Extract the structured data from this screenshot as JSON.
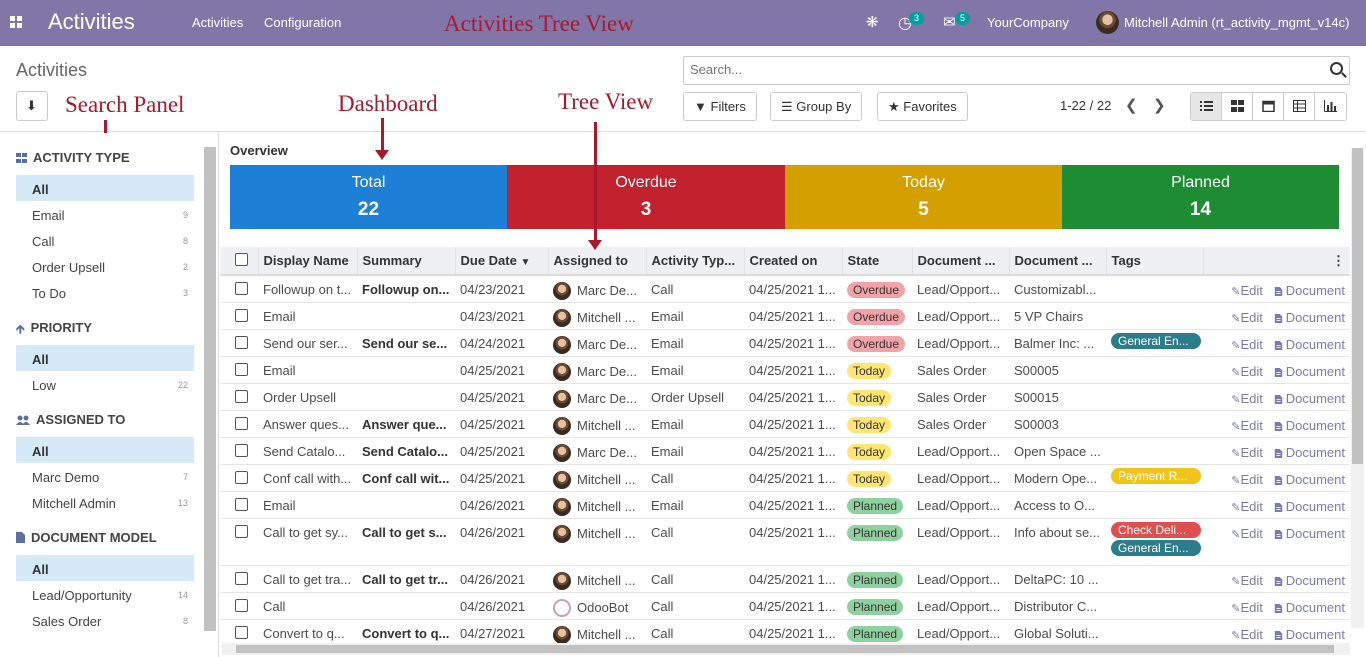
{
  "topbar": {
    "app_title": "Activities",
    "menu": [
      "Activities",
      "Configuration"
    ],
    "annotation": "Activities Tree View",
    "activity_count": "3",
    "message_count": "5",
    "company": "YourCompany",
    "user": "Mitchell Admin (rt_activity_mgmt_v14c)",
    "icons": [
      "apps-icon",
      "bug-icon",
      "clock-icon",
      "chat-icon"
    ]
  },
  "control_panel": {
    "title": "Activities",
    "search_placeholder": "Search...",
    "filters_label": "Filters",
    "groupby_label": "Group By",
    "favorites_label": "Favorites",
    "pager": "1-22 / 22",
    "annotations": {
      "search_panel": "Search Panel",
      "dashboard": "Dashboard",
      "tree_view": "Tree View"
    }
  },
  "sidebar": {
    "sections": [
      {
        "title": "ACTIVITY TYPE",
        "items": [
          {
            "label": "All",
            "count": ""
          },
          {
            "label": "Email",
            "count": "9"
          },
          {
            "label": "Call",
            "count": "8"
          },
          {
            "label": "Order Upsell",
            "count": "2"
          },
          {
            "label": "To Do",
            "count": "3"
          }
        ]
      },
      {
        "title": "PRIORITY",
        "items": [
          {
            "label": "All",
            "count": ""
          },
          {
            "label": "Low",
            "count": "22"
          }
        ]
      },
      {
        "title": "ASSIGNED TO",
        "items": [
          {
            "label": "All",
            "count": ""
          },
          {
            "label": "Marc Demo",
            "count": "7"
          },
          {
            "label": "Mitchell Admin",
            "count": "13"
          }
        ]
      },
      {
        "title": "DOCUMENT MODEL",
        "items": [
          {
            "label": "All",
            "count": ""
          },
          {
            "label": "Lead/Opportunity",
            "count": "14"
          },
          {
            "label": "Sales Order",
            "count": "8"
          }
        ]
      }
    ]
  },
  "overview": {
    "label": "Overview",
    "tiles": [
      {
        "label": "Total",
        "value": "22",
        "color": "#1e7fd6"
      },
      {
        "label": "Overdue",
        "value": "3",
        "color": "#c2222e"
      },
      {
        "label": "Today",
        "value": "5",
        "color": "#d4a000"
      },
      {
        "label": "Planned",
        "value": "14",
        "color": "#1e8c33"
      }
    ]
  },
  "table": {
    "columns": [
      "Display Name",
      "Summary",
      "Due Date",
      "Assigned to",
      "Activity Typ...",
      "Created on",
      "State",
      "Document ...",
      "Document ...",
      "Tags"
    ],
    "edit_label": "Edit",
    "document_label": "Document",
    "rows": [
      {
        "name": "Followup on t...",
        "summary": "Followup on...",
        "due": "04/23/2021",
        "assigned": "Marc De...",
        "type": "Call",
        "created": "04/25/2021 1...",
        "state": "Overdue",
        "model": "Lead/Opport...",
        "doc": "Customizabl...",
        "tags": []
      },
      {
        "name": "Email",
        "summary": "",
        "due": "04/23/2021",
        "assigned": "Mitchell ...",
        "type": "Email",
        "created": "04/25/2021 1...",
        "state": "Overdue",
        "model": "Lead/Opport...",
        "doc": "5 VP Chairs",
        "tags": []
      },
      {
        "name": "Send our ser...",
        "summary": "Send our se...",
        "due": "04/24/2021",
        "assigned": "Marc De...",
        "type": "Email",
        "created": "04/25/2021 1...",
        "state": "Overdue",
        "model": "Lead/Opport...",
        "doc": "Balmer Inc: ...",
        "tags": [
          {
            "label": "General En...",
            "color": "#2c7d8c"
          }
        ]
      },
      {
        "name": "Email",
        "summary": "",
        "due": "04/25/2021",
        "assigned": "Marc De...",
        "type": "Email",
        "created": "04/25/2021 1...",
        "state": "Today",
        "model": "Sales Order",
        "doc": "S00005",
        "tags": []
      },
      {
        "name": "Order Upsell",
        "summary": "",
        "due": "04/25/2021",
        "assigned": "Marc De...",
        "type": "Order Upsell",
        "created": "04/25/2021 1...",
        "state": "Today",
        "model": "Sales Order",
        "doc": "S00015",
        "tags": []
      },
      {
        "name": "Answer ques...",
        "summary": "Answer que...",
        "due": "04/25/2021",
        "assigned": "Mitchell ...",
        "type": "Email",
        "created": "04/25/2021 1...",
        "state": "Today",
        "model": "Sales Order",
        "doc": "S00003",
        "tags": []
      },
      {
        "name": "Send Catalo...",
        "summary": "Send Catalo...",
        "due": "04/25/2021",
        "assigned": "Marc De...",
        "type": "Email",
        "created": "04/25/2021 1...",
        "state": "Today",
        "model": "Lead/Opport...",
        "doc": "Open Space ...",
        "tags": []
      },
      {
        "name": "Conf call with...",
        "summary": "Conf call wit...",
        "due": "04/25/2021",
        "assigned": "Mitchell ...",
        "type": "Call",
        "created": "04/25/2021 1...",
        "state": "Today",
        "model": "Lead/Opport...",
        "doc": "Modern Ope...",
        "tags": [
          {
            "label": "Payment R...",
            "color": "#f0c419"
          }
        ]
      },
      {
        "name": "Email",
        "summary": "",
        "due": "04/26/2021",
        "assigned": "Mitchell ...",
        "type": "Email",
        "created": "04/25/2021 1...",
        "state": "Planned",
        "model": "Lead/Opport...",
        "doc": "Access to O...",
        "tags": []
      },
      {
        "name": "Call to get sy...",
        "summary": "Call to get s...",
        "due": "04/26/2021",
        "assigned": "Mitchell ...",
        "type": "Call",
        "created": "04/25/2021 1...",
        "state": "Planned",
        "model": "Lead/Opport...",
        "doc": "Info about se...",
        "tags": [
          {
            "label": "Check Deli...",
            "color": "#e04e4e"
          },
          {
            "label": "General En...",
            "color": "#2c7d8c"
          }
        ]
      },
      {
        "name": "Call to get tra...",
        "summary": "Call to get tr...",
        "due": "04/26/2021",
        "assigned": "Mitchell ...",
        "type": "Call",
        "created": "04/25/2021 1...",
        "state": "Planned",
        "model": "Lead/Opport...",
        "doc": "DeltaPC: 10 ...",
        "tags": []
      },
      {
        "name": "Call",
        "summary": "",
        "due": "04/26/2021",
        "assigned": "OdooBot",
        "type": "Call",
        "created": "04/25/2021 1...",
        "state": "Planned",
        "model": "Lead/Opport...",
        "doc": "Distributor C...",
        "tags": []
      },
      {
        "name": "Convert to q...",
        "summary": "Convert to q...",
        "due": "04/27/2021",
        "assigned": "Mitchell ...",
        "type": "Call",
        "created": "04/25/2021 1...",
        "state": "Planned",
        "model": "Lead/Opport...",
        "doc": "Global Soluti...",
        "tags": []
      }
    ]
  }
}
